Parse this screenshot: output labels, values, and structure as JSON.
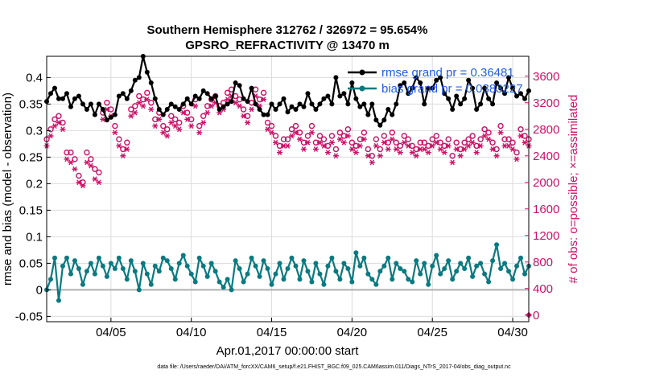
{
  "chart_data": {
    "type": "line",
    "title": "Southern Hemisphere 312762 / 326972 = 95.654%",
    "subtitle": "GPSRO_REFRACTIVITY @ 13470 m",
    "xlabel": "Apr.01,2017 00:00:00 start",
    "ylabel_left": "rmse and bias (model - observation)",
    "ylabel_right": "# of obs: o=possible; ×=assimilated",
    "footer": "data file: /Users/raeder/DAI/ATM_forcXX/CAM6_setup/f.e21.FHIST_BGC.f09_025.CAM6assim.011/Diags_NTrS_2017-04/obs_diag_output.nc",
    "x_ticks": [
      "04/05",
      "04/10",
      "04/15",
      "04/20",
      "04/25",
      "04/30"
    ],
    "x_tick_days": [
      5,
      10,
      15,
      20,
      25,
      30
    ],
    "xlim": [
      1,
      31
    ],
    "ylim_left": [
      -0.06,
      0.44
    ],
    "left_ticks": [
      "-0.05",
      "0",
      "0.05",
      "0.1",
      "0.15",
      "0.2",
      "0.25",
      "0.3",
      "0.35",
      "0.4"
    ],
    "ylim_right": [
      -100,
      3900
    ],
    "right_ticks": [
      "0",
      "400",
      "800",
      "1200",
      "1600",
      "2000",
      "2400",
      "2800",
      "3200",
      "3600"
    ],
    "grid": true,
    "legend_position": "top-right",
    "colors": {
      "rmse": "#000000",
      "bias": "#0a7a80",
      "obs": "#cc1166",
      "zero_line": "#b0b0b0",
      "legend_text": "#1f5fe6"
    },
    "x_time_days": [
      1.0,
      1.25,
      1.5,
      1.75,
      2.0,
      2.25,
      2.5,
      2.75,
      3.0,
      3.25,
      3.5,
      3.75,
      4.0,
      4.25,
      4.5,
      4.75,
      5.0,
      5.25,
      5.5,
      5.75,
      6.0,
      6.25,
      6.5,
      6.75,
      7.0,
      7.25,
      7.5,
      7.75,
      8.0,
      8.25,
      8.5,
      8.75,
      9.0,
      9.25,
      9.5,
      9.75,
      10.0,
      10.25,
      10.5,
      10.75,
      11.0,
      11.25,
      11.5,
      11.75,
      12.0,
      12.25,
      12.5,
      12.75,
      13.0,
      13.25,
      13.5,
      13.75,
      14.0,
      14.25,
      14.5,
      14.75,
      15.0,
      15.25,
      15.5,
      15.75,
      16.0,
      16.25,
      16.5,
      16.75,
      17.0,
      17.25,
      17.5,
      17.75,
      18.0,
      18.25,
      18.5,
      18.75,
      19.0,
      19.25,
      19.5,
      19.75,
      20.0,
      20.25,
      20.5,
      20.75,
      21.0,
      21.25,
      21.5,
      21.75,
      22.0,
      22.25,
      22.5,
      22.75,
      23.0,
      23.25,
      23.5,
      23.75,
      24.0,
      24.25,
      24.5,
      24.75,
      25.0,
      25.25,
      25.5,
      25.75,
      26.0,
      26.25,
      26.5,
      26.75,
      27.0,
      27.25,
      27.5,
      27.75,
      28.0,
      28.25,
      28.5,
      28.75,
      29.0,
      29.25,
      29.5,
      29.75,
      30.0,
      30.25,
      30.5,
      30.75,
      31.0
    ],
    "series": [
      {
        "name": "rmse grand pr = 0.36481",
        "axis": "left",
        "marker": "filled-circle",
        "values": [
          0.355,
          0.37,
          0.38,
          0.36,
          0.36,
          0.37,
          0.345,
          0.36,
          0.365,
          0.35,
          0.34,
          0.35,
          0.33,
          0.35,
          0.34,
          0.32,
          0.325,
          0.33,
          0.365,
          0.37,
          0.36,
          0.375,
          0.395,
          0.4,
          0.44,
          0.41,
          0.39,
          0.36,
          0.34,
          0.33,
          0.34,
          0.35,
          0.345,
          0.34,
          0.35,
          0.36,
          0.35,
          0.365,
          0.36,
          0.375,
          0.37,
          0.36,
          0.365,
          0.34,
          0.345,
          0.35,
          0.355,
          0.39,
          0.385,
          0.36,
          0.355,
          0.38,
          0.35,
          0.34,
          0.33,
          0.33,
          0.35,
          0.34,
          0.35,
          0.36,
          0.335,
          0.345,
          0.34,
          0.35,
          0.345,
          0.37,
          0.35,
          0.34,
          0.35,
          0.36,
          0.365,
          0.35,
          0.4,
          0.365,
          0.37,
          0.35,
          0.39,
          0.36,
          0.345,
          0.35,
          0.33,
          0.35,
          0.32,
          0.31,
          0.32,
          0.34,
          0.33,
          0.35,
          0.385,
          0.39,
          0.37,
          0.38,
          0.4,
          0.39,
          0.35,
          0.38,
          0.38,
          0.395,
          0.4,
          0.37,
          0.36,
          0.34,
          0.365,
          0.35,
          0.36,
          0.395,
          0.38,
          0.34,
          0.35,
          0.38,
          0.36,
          0.35,
          0.39,
          0.38,
          0.37,
          0.4,
          0.38,
          0.365,
          0.37,
          0.36,
          0.375
        ]
      },
      {
        "name": "bias grand pr = 0.0383227",
        "axis": "left",
        "marker": "filled-circle",
        "values": [
          0.0,
          0.02,
          0.06,
          -0.02,
          0.045,
          0.06,
          0.03,
          0.055,
          0.04,
          0.01,
          0.035,
          0.05,
          0.03,
          0.06,
          0.045,
          0.025,
          0.05,
          0.04,
          0.06,
          0.04,
          0.02,
          0.055,
          0.035,
          0.0,
          0.05,
          0.03,
          0.01,
          0.045,
          0.035,
          0.06,
          0.055,
          0.04,
          0.02,
          0.05,
          0.065,
          0.045,
          0.03,
          0.015,
          0.06,
          0.045,
          0.025,
          0.05,
          0.035,
          0.015,
          0.005,
          0.02,
          0.0,
          0.055,
          0.04,
          0.015,
          0.03,
          0.06,
          0.045,
          0.025,
          0.055,
          0.04,
          0.01,
          0.03,
          0.05,
          0.02,
          0.04,
          0.06,
          0.045,
          0.02,
          0.055,
          0.035,
          0.015,
          0.05,
          0.03,
          0.01,
          0.045,
          0.06,
          0.035,
          0.02,
          0.05,
          0.04,
          0.015,
          0.07,
          0.045,
          0.06,
          0.03,
          0.02,
          0.01,
          0.035,
          0.045,
          0.06,
          0.02,
          0.05,
          0.04,
          0.035,
          0.02,
          0.015,
          0.055,
          0.03,
          0.05,
          0.01,
          0.045,
          0.065,
          0.03,
          0.04,
          0.055,
          0.02,
          0.035,
          0.05,
          0.04,
          0.06,
          0.025,
          0.045,
          0.05,
          0.03,
          0.015,
          0.055,
          0.085,
          0.04,
          0.05,
          0.035,
          0.02,
          0.045,
          0.06,
          0.03,
          0.045
        ]
      },
      {
        "name": "possible obs (o)",
        "axis": "right",
        "marker": "open-circle",
        "values": [
          2650,
          2800,
          2950,
          3000,
          2900,
          2450,
          2450,
          2350,
          2100,
          2000,
          2450,
          2350,
          2200,
          2150,
          3050,
          3200,
          3100,
          2850,
          2650,
          2500,
          2600,
          3100,
          3150,
          3300,
          3250,
          3350,
          3200,
          2950,
          3050,
          2850,
          2800,
          3000,
          2950,
          2900,
          3150,
          3050,
          2950,
          3250,
          2850,
          3000,
          3150,
          3250,
          3300,
          3150,
          3200,
          3350,
          3400,
          3300,
          3250,
          3100,
          3000,
          3200,
          3400,
          3250,
          3350,
          2900,
          2850,
          2700,
          2550,
          2650,
          2650,
          2800,
          2850,
          2750,
          2600,
          2700,
          2850,
          2600,
          2700,
          2650,
          2550,
          2700,
          2500,
          2750,
          2700,
          2800,
          2600,
          2550,
          2650,
          2750,
          2500,
          2400,
          2650,
          2500,
          2700,
          2600,
          2750,
          2600,
          2550,
          2700,
          2650,
          2550,
          2500,
          2600,
          2600,
          2550,
          2650,
          2700,
          2600,
          2550,
          2650,
          2400,
          2600,
          2500,
          2600,
          2650,
          2700,
          2550,
          2650,
          2800,
          2750,
          2600,
          2500,
          2850,
          2650,
          2650,
          2600,
          2450,
          2800,
          2700,
          2650
        ]
      },
      {
        "name": "assimilated obs (×)",
        "axis": "right",
        "marker": "asterisk",
        "values": [
          2550,
          2700,
          2850,
          2900,
          2800,
          2350,
          2300,
          2200,
          2000,
          1950,
          2300,
          2250,
          2050,
          2000,
          2950,
          3100,
          3000,
          2750,
          2550,
          2400,
          2500,
          3000,
          3050,
          3200,
          3150,
          3250,
          3100,
          2850,
          2950,
          2750,
          2700,
          2900,
          2850,
          2800,
          3050,
          2950,
          2850,
          3150,
          2750,
          2900,
          3050,
          3150,
          3200,
          3050,
          3100,
          3250,
          3300,
          3200,
          3150,
          3000,
          2900,
          3100,
          3300,
          3150,
          3250,
          2800,
          2750,
          2600,
          2450,
          2550,
          2550,
          2700,
          2750,
          2650,
          2500,
          2600,
          2750,
          2500,
          2600,
          2550,
          2450,
          2600,
          2400,
          2650,
          2600,
          2700,
          2500,
          2450,
          2550,
          2650,
          2400,
          2300,
          2550,
          2400,
          2600,
          2500,
          2650,
          2500,
          2450,
          2600,
          2550,
          2450,
          2400,
          2500,
          2500,
          2450,
          2550,
          2600,
          2500,
          2450,
          2550,
          2300,
          2500,
          2400,
          2500,
          2550,
          2600,
          2450,
          2550,
          2700,
          2650,
          2500,
          2400,
          2750,
          2550,
          2550,
          2500,
          2350,
          2700,
          2600,
          2550
        ]
      }
    ],
    "annotations": [
      {
        "label": "0",
        "axis": "right",
        "day": 31,
        "value": 0
      }
    ]
  }
}
